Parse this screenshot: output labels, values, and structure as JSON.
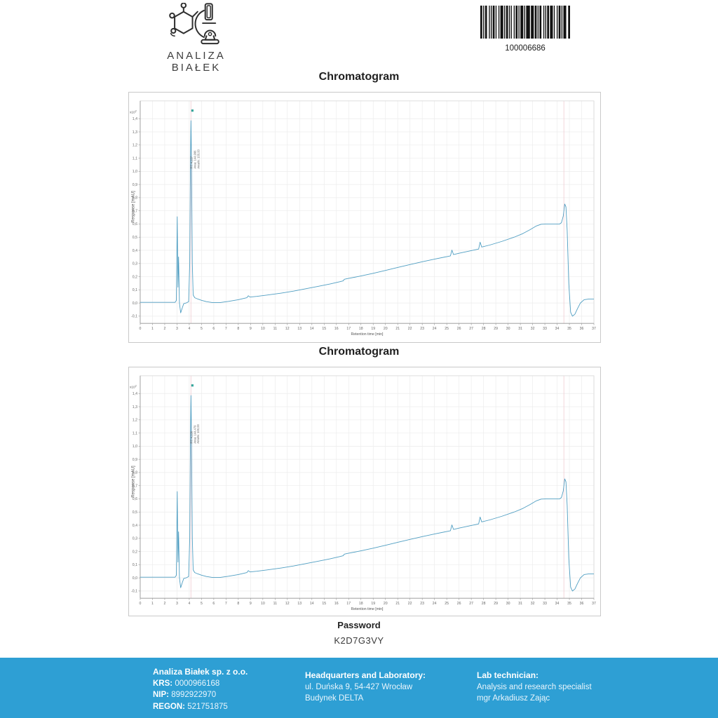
{
  "header": {
    "logo_icon": "molecule-microscope-icon",
    "logo_text": "ANALIZA BIAŁEK",
    "barcode_icon": "barcode",
    "barcode_value": "100006686"
  },
  "charts": [
    {
      "title": "Chromatogram"
    },
    {
      "title": "Chromatogram"
    }
  ],
  "password": {
    "label": "Password",
    "value": "K2D7G3VY"
  },
  "footer": {
    "company": {
      "name": "Analiza Białek sp. z o.o.",
      "krs_label": "KRS:",
      "krs_value": "0000966168",
      "nip_label": "NIP:",
      "nip_value": "8992922970",
      "regon_label": "REGON:",
      "regon_value": "521751875"
    },
    "headquarters": {
      "title": "Headquarters and Laboratory:",
      "line1": "ul. Duńska 9, 54-427 Wrocław",
      "line2": "Budynek DELTA"
    },
    "technician": {
      "title": "Lab technician:",
      "line1": "Analysis and research specialist",
      "line2": "mgr Arkadiusz Zając"
    }
  },
  "chart_data": [
    {
      "type": "line",
      "title": "Chromatogram",
      "xlabel": "Retention time [min]",
      "ylabel": "Response [mAU]",
      "y_multiplier_mantissa": "x10",
      "y_multiplier_exp": "2",
      "xlim": [
        0,
        37
      ],
      "ylim": [
        -0.155,
        1.535
      ],
      "grid": true,
      "x_ticks": [
        0,
        1,
        2,
        3,
        4,
        5,
        6,
        7,
        8,
        9,
        10,
        11,
        12,
        13,
        14,
        15,
        16,
        17,
        18,
        19,
        20,
        21,
        22,
        23,
        24,
        25,
        26,
        27,
        28,
        29,
        30,
        31,
        32,
        33,
        34,
        35,
        36,
        37
      ],
      "y_ticks": [
        1.4,
        1.3,
        1.2,
        1.1,
        1.0,
        0.9,
        0.8,
        0.7,
        0.6,
        0.5,
        0.4,
        0.3,
        0.2,
        0.1,
        0.0,
        -0.1
      ],
      "y_tick_labels": [
        "1,4",
        "1,3",
        "1,2",
        "1,1",
        "1,0",
        "0,9",
        "0,8",
        "0,7",
        "0,6",
        "0,5",
        "0,4",
        "0,3",
        "0,2",
        "0,1",
        "0,0",
        "-0,1"
      ],
      "line_color": "#4f9ec2",
      "marker_lines_x": [
        4.137,
        34.55
      ],
      "marker_line_color": "#f0ccd2",
      "annotation": {
        "x": 4.137,
        "lines": [
          "RT: 4,137",
          "Area: 144,996",
          "Area%: 100,00"
        ],
        "flag_color": "#35a79c"
      },
      "points": [
        [
          0,
          0.005
        ],
        [
          1,
          0.005
        ],
        [
          2,
          0.005
        ],
        [
          2.85,
          0.005
        ],
        [
          2.95,
          0.02
        ],
        [
          3.02,
          0.655
        ],
        [
          3.08,
          0.12
        ],
        [
          3.13,
          0.35
        ],
        [
          3.2,
          0.0
        ],
        [
          3.3,
          -0.075
        ],
        [
          3.42,
          -0.04
        ],
        [
          3.55,
          -0.005
        ],
        [
          3.75,
          0.0
        ],
        [
          3.95,
          0.01
        ],
        [
          4.04,
          0.3
        ],
        [
          4.1,
          1.1
        ],
        [
          4.14,
          1.385
        ],
        [
          4.18,
          1.1
        ],
        [
          4.25,
          0.3
        ],
        [
          4.32,
          0.06
        ],
        [
          4.45,
          0.04
        ],
        [
          4.7,
          0.03
        ],
        [
          5.0,
          0.02
        ],
        [
          5.4,
          0.01
        ],
        [
          5.9,
          0.003
        ],
        [
          6.5,
          0.003
        ],
        [
          7.2,
          0.012
        ],
        [
          8.0,
          0.025
        ],
        [
          8.7,
          0.04
        ],
        [
          8.82,
          0.055
        ],
        [
          8.95,
          0.045
        ],
        [
          9.5,
          0.05
        ],
        [
          10.5,
          0.062
        ],
        [
          11.5,
          0.075
        ],
        [
          12.5,
          0.09
        ],
        [
          13.5,
          0.108
        ],
        [
          14.5,
          0.126
        ],
        [
          15.5,
          0.145
        ],
        [
          16.3,
          0.162
        ],
        [
          16.55,
          0.168
        ],
        [
          16.65,
          0.18
        ],
        [
          16.9,
          0.185
        ],
        [
          18.0,
          0.205
        ],
        [
          19.0,
          0.225
        ],
        [
          20.0,
          0.247
        ],
        [
          21.0,
          0.27
        ],
        [
          22.0,
          0.292
        ],
        [
          23.0,
          0.313
        ],
        [
          24.0,
          0.333
        ],
        [
          25.0,
          0.352
        ],
        [
          25.3,
          0.358
        ],
        [
          25.42,
          0.402
        ],
        [
          25.55,
          0.368
        ],
        [
          26.0,
          0.378
        ],
        [
          27.0,
          0.398
        ],
        [
          27.6,
          0.41
        ],
        [
          27.72,
          0.462
        ],
        [
          27.85,
          0.425
        ],
        [
          28.5,
          0.44
        ],
        [
          29.5,
          0.468
        ],
        [
          30.5,
          0.5
        ],
        [
          31.2,
          0.527
        ],
        [
          31.8,
          0.557
        ],
        [
          32.3,
          0.585
        ],
        [
          32.7,
          0.598
        ],
        [
          33.2,
          0.6
        ],
        [
          33.8,
          0.6
        ],
        [
          34.2,
          0.6
        ],
        [
          34.35,
          0.61
        ],
        [
          34.5,
          0.66
        ],
        [
          34.62,
          0.752
        ],
        [
          34.72,
          0.73
        ],
        [
          34.82,
          0.55
        ],
        [
          34.95,
          0.15
        ],
        [
          35.1,
          -0.07
        ],
        [
          35.25,
          -0.1
        ],
        [
          35.45,
          -0.085
        ],
        [
          35.65,
          -0.045
        ],
        [
          35.9,
          0.0
        ],
        [
          36.2,
          0.025
        ],
        [
          36.6,
          0.03
        ],
        [
          37,
          0.03
        ]
      ]
    },
    {
      "type": "line",
      "title": "Chromatogram",
      "xlabel": "Retention time [min]",
      "ylabel": "Response [mAU]",
      "y_multiplier_mantissa": "x10",
      "y_multiplier_exp": "2",
      "xlim": [
        0,
        37
      ],
      "ylim": [
        -0.155,
        1.535
      ],
      "grid": true,
      "x_ticks": [
        0,
        1,
        2,
        3,
        4,
        5,
        6,
        7,
        8,
        9,
        10,
        11,
        12,
        13,
        14,
        15,
        16,
        17,
        18,
        19,
        20,
        21,
        22,
        23,
        24,
        25,
        26,
        27,
        28,
        29,
        30,
        31,
        32,
        33,
        34,
        35,
        36,
        37
      ],
      "y_ticks": [
        1.4,
        1.3,
        1.2,
        1.1,
        1.0,
        0.9,
        0.8,
        0.7,
        0.6,
        0.5,
        0.4,
        0.3,
        0.2,
        0.1,
        0.0,
        -0.1
      ],
      "y_tick_labels": [
        "1,4",
        "1,3",
        "1,2",
        "1,1",
        "1,0",
        "0,9",
        "0,8",
        "0,7",
        "0,6",
        "0,5",
        "0,4",
        "0,3",
        "0,2",
        "0,1",
        "0,0",
        "-0,1"
      ],
      "line_color": "#4f9ec2",
      "marker_lines_x": [
        4.136,
        34.55
      ],
      "marker_line_color": "#f0ccd2",
      "annotation": {
        "x": 4.136,
        "lines": [
          "RT: 4,136",
          "Area: 144,479",
          "Area%: 100,00"
        ],
        "flag_color": "#35a79c"
      },
      "points": [
        [
          0,
          0.005
        ],
        [
          1,
          0.005
        ],
        [
          2,
          0.005
        ],
        [
          2.85,
          0.005
        ],
        [
          2.95,
          0.02
        ],
        [
          3.02,
          0.655
        ],
        [
          3.08,
          0.12
        ],
        [
          3.13,
          0.35
        ],
        [
          3.2,
          0.0
        ],
        [
          3.3,
          -0.075
        ],
        [
          3.42,
          -0.04
        ],
        [
          3.55,
          -0.005
        ],
        [
          3.75,
          0.0
        ],
        [
          3.95,
          0.01
        ],
        [
          4.04,
          0.3
        ],
        [
          4.1,
          1.1
        ],
        [
          4.14,
          1.385
        ],
        [
          4.18,
          1.1
        ],
        [
          4.25,
          0.3
        ],
        [
          4.32,
          0.06
        ],
        [
          4.45,
          0.04
        ],
        [
          4.7,
          0.03
        ],
        [
          5.0,
          0.02
        ],
        [
          5.4,
          0.01
        ],
        [
          5.9,
          0.003
        ],
        [
          6.5,
          0.003
        ],
        [
          7.2,
          0.012
        ],
        [
          8.0,
          0.025
        ],
        [
          8.7,
          0.04
        ],
        [
          8.82,
          0.055
        ],
        [
          8.95,
          0.045
        ],
        [
          9.5,
          0.05
        ],
        [
          10.5,
          0.062
        ],
        [
          11.5,
          0.075
        ],
        [
          12.5,
          0.09
        ],
        [
          13.5,
          0.108
        ],
        [
          14.5,
          0.126
        ],
        [
          15.5,
          0.145
        ],
        [
          16.3,
          0.162
        ],
        [
          16.55,
          0.168
        ],
        [
          16.65,
          0.18
        ],
        [
          16.9,
          0.185
        ],
        [
          18.0,
          0.205
        ],
        [
          19.0,
          0.225
        ],
        [
          20.0,
          0.247
        ],
        [
          21.0,
          0.27
        ],
        [
          22.0,
          0.292
        ],
        [
          23.0,
          0.313
        ],
        [
          24.0,
          0.333
        ],
        [
          25.0,
          0.352
        ],
        [
          25.3,
          0.358
        ],
        [
          25.42,
          0.402
        ],
        [
          25.55,
          0.368
        ],
        [
          26.0,
          0.378
        ],
        [
          27.0,
          0.398
        ],
        [
          27.6,
          0.41
        ],
        [
          27.72,
          0.462
        ],
        [
          27.85,
          0.425
        ],
        [
          28.5,
          0.44
        ],
        [
          29.5,
          0.468
        ],
        [
          30.5,
          0.5
        ],
        [
          31.2,
          0.527
        ],
        [
          31.8,
          0.557
        ],
        [
          32.3,
          0.585
        ],
        [
          32.7,
          0.598
        ],
        [
          33.2,
          0.6
        ],
        [
          33.8,
          0.6
        ],
        [
          34.2,
          0.6
        ],
        [
          34.35,
          0.61
        ],
        [
          34.5,
          0.66
        ],
        [
          34.62,
          0.752
        ],
        [
          34.72,
          0.73
        ],
        [
          34.82,
          0.55
        ],
        [
          34.95,
          0.15
        ],
        [
          35.1,
          -0.07
        ],
        [
          35.25,
          -0.1
        ],
        [
          35.45,
          -0.085
        ],
        [
          35.65,
          -0.045
        ],
        [
          35.9,
          0.0
        ],
        [
          36.2,
          0.025
        ],
        [
          36.6,
          0.03
        ],
        [
          37,
          0.03
        ]
      ]
    }
  ]
}
